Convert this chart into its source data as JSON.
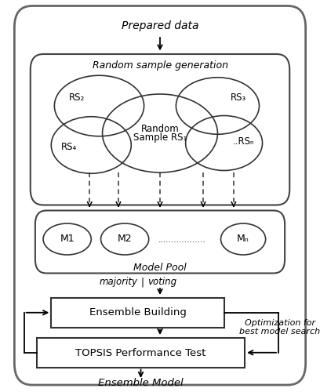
{
  "fig_width": 4.08,
  "fig_height": 5.0,
  "bg_color": "#ffffff",
  "title": "Prepared data",
  "rsg_label": "Random sample generation",
  "model_pool_label": "Model Pool",
  "ensemble_label": "Ensemble Building",
  "topsis_label": "TOPSIS Performance Test",
  "ensemble_model_label": "Ensemble Model",
  "optimization_label": "Optimization for\nbest model search"
}
